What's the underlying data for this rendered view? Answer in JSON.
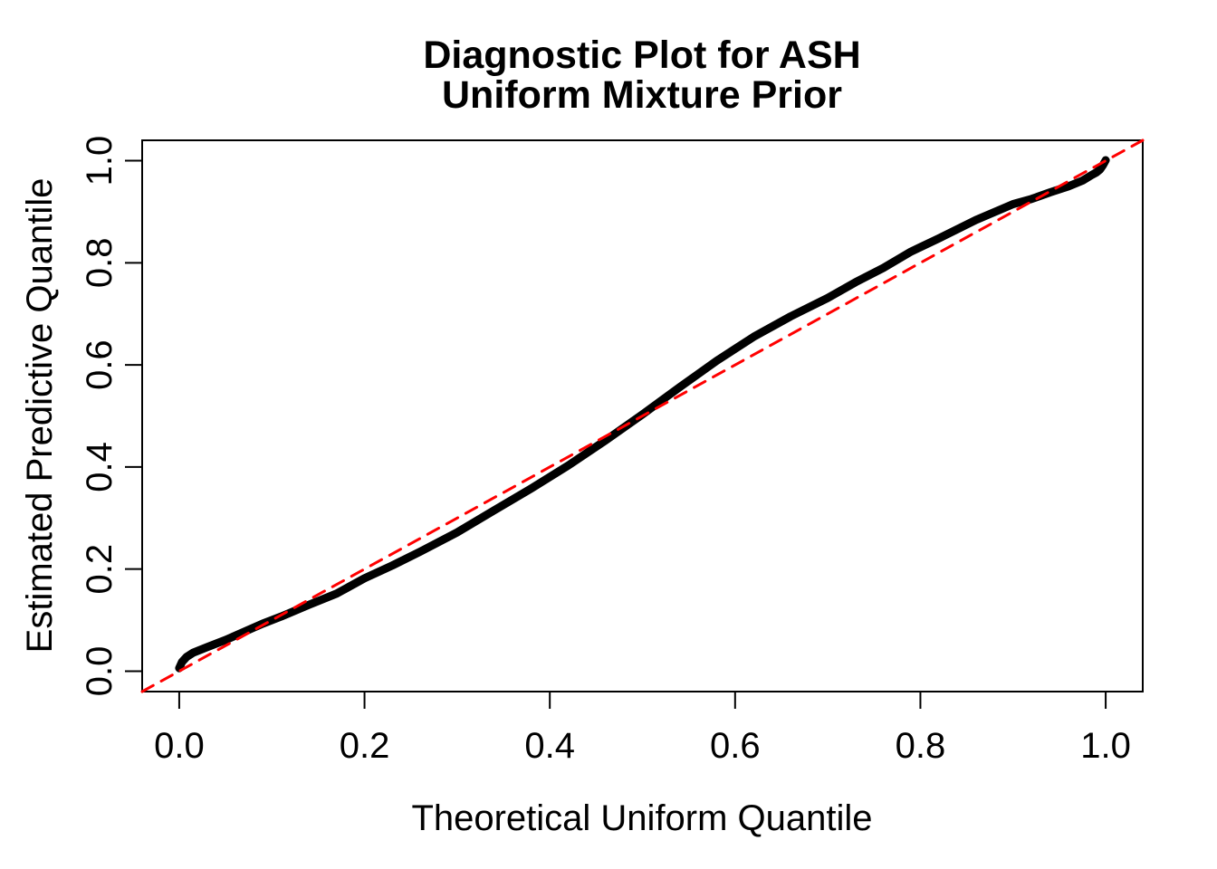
{
  "chart_data": {
    "type": "line",
    "title": "Diagnostic Plot for ASH",
    "subtitle": "Uniform Mixture Prior",
    "xlabel": "Theoretical Uniform Quantile",
    "ylabel": "Estimated Predictive Quantile",
    "xlim": [
      -0.04,
      1.04
    ],
    "ylim": [
      -0.04,
      1.04
    ],
    "grid": false,
    "legend": "none",
    "x_ticks": [
      0.0,
      0.2,
      0.4,
      0.6,
      0.8,
      1.0
    ],
    "y_ticks": [
      0.0,
      0.2,
      0.4,
      0.6,
      0.8,
      1.0
    ],
    "x_tick_labels": [
      "0.0",
      "0.2",
      "0.4",
      "0.6",
      "0.8",
      "1.0"
    ],
    "y_tick_labels": [
      "0.0",
      "0.2",
      "0.4",
      "0.6",
      "0.8",
      "1.0"
    ],
    "colors": {
      "curve": "#000000",
      "reference_line": "#FF0000",
      "background": "#FFFFFF",
      "axis": "#000000"
    },
    "series": [
      {
        "name": "estimated-predictive-quantiles",
        "style": "solid",
        "color": "#000000",
        "stroke_width": 9,
        "points": [
          [
            0.0,
            0.006
          ],
          [
            0.003,
            0.018
          ],
          [
            0.008,
            0.028
          ],
          [
            0.015,
            0.036
          ],
          [
            0.03,
            0.047
          ],
          [
            0.05,
            0.061
          ],
          [
            0.07,
            0.077
          ],
          [
            0.09,
            0.093
          ],
          [
            0.11,
            0.107
          ],
          [
            0.14,
            0.13
          ],
          [
            0.17,
            0.152
          ],
          [
            0.2,
            0.182
          ],
          [
            0.23,
            0.207
          ],
          [
            0.26,
            0.234
          ],
          [
            0.3,
            0.272
          ],
          [
            0.34,
            0.315
          ],
          [
            0.38,
            0.358
          ],
          [
            0.42,
            0.403
          ],
          [
            0.46,
            0.452
          ],
          [
            0.5,
            0.503
          ],
          [
            0.54,
            0.556
          ],
          [
            0.58,
            0.608
          ],
          [
            0.62,
            0.655
          ],
          [
            0.66,
            0.695
          ],
          [
            0.7,
            0.731
          ],
          [
            0.73,
            0.762
          ],
          [
            0.76,
            0.79
          ],
          [
            0.79,
            0.822
          ],
          [
            0.82,
            0.848
          ],
          [
            0.86,
            0.884
          ],
          [
            0.9,
            0.915
          ],
          [
            0.92,
            0.925
          ],
          [
            0.94,
            0.938
          ],
          [
            0.96,
            0.95
          ],
          [
            0.975,
            0.961
          ],
          [
            0.985,
            0.972
          ],
          [
            0.99,
            0.977
          ],
          [
            0.994,
            0.983
          ],
          [
            0.997,
            0.991
          ],
          [
            1.0,
            1.001
          ]
        ]
      },
      {
        "name": "reference-diagonal",
        "style": "dashed",
        "color": "#FF0000",
        "stroke_width": 3,
        "points": [
          [
            -0.04,
            -0.04
          ],
          [
            1.04,
            1.04
          ]
        ]
      }
    ]
  }
}
